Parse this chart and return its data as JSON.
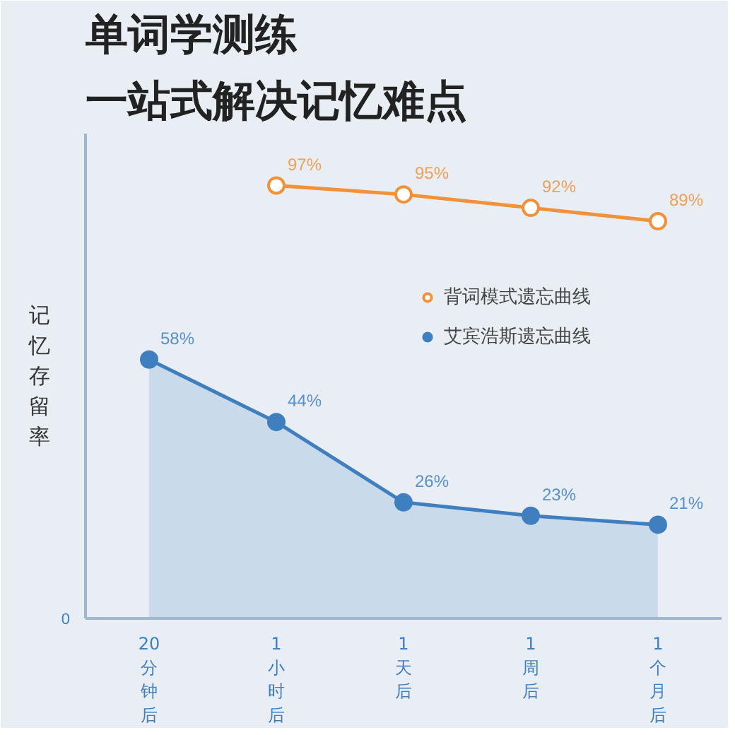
{
  "chart_data": {
    "type": "line",
    "title": "单词学测练",
    "subtitle": "一站式解决记忆难点",
    "ylabel": "记忆存留率",
    "categories": [
      "20分钟后",
      "1小时后",
      "1天后",
      "1周后",
      "1个月后"
    ],
    "series": [
      {
        "name": "背词模式遗忘曲线",
        "color": "#f0923a",
        "values": [
          null,
          97,
          95,
          92,
          89
        ],
        "value_labels": [
          null,
          "97%",
          "95%",
          "92%",
          "89%"
        ],
        "marker": "circle"
      },
      {
        "name": "艾宾浩斯遗忘曲线",
        "color": "#3f7fc0",
        "values": [
          58,
          44,
          26,
          23,
          21
        ],
        "value_labels": [
          "58%",
          "44%",
          "26%",
          "23%",
          "21%"
        ],
        "type": "area"
      }
    ],
    "annotations": [
      "0"
    ],
    "legend": "right",
    "grid": false
  }
}
